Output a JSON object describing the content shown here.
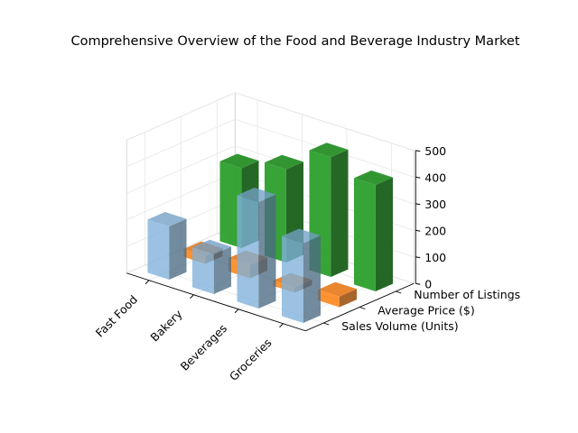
{
  "chart_data": {
    "type": "bar",
    "title": "Comprehensive Overview of the Food and Beverage Industry Market",
    "categories": [
      "Fast Food",
      "Bakery",
      "Beverages",
      "Groceries"
    ],
    "series": [
      {
        "name": "Sales Volume (Units)",
        "values": [
          200,
          150,
          400,
          300
        ],
        "color": "#7fb2dc"
      },
      {
        "name": "Average Price ($)",
        "values": [
          30,
          50,
          20,
          40
        ],
        "color": "#ff7f0e"
      },
      {
        "name": "Number of Listings",
        "values": [
          300,
          350,
          450,
          400
        ],
        "color": "#2ca02c"
      }
    ],
    "zlim": [
      0,
      500
    ],
    "zticks": [
      "0",
      "100",
      "200",
      "300",
      "400",
      "500"
    ],
    "grid": true
  }
}
